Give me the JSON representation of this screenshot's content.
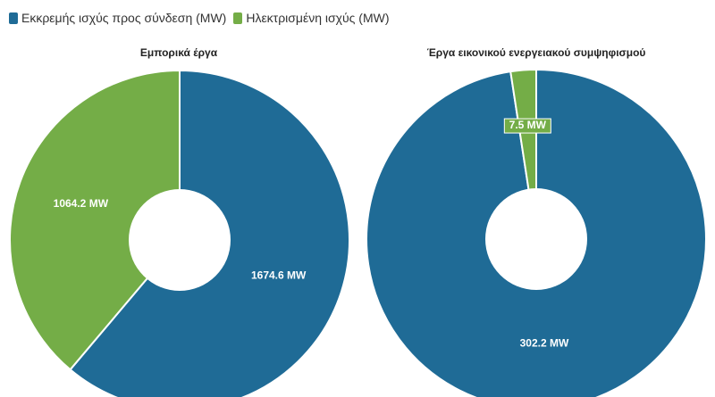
{
  "legend": {
    "items": [
      {
        "label": "Εκκρεμής ισχύς προς σύνδεση (MW)",
        "color": "#1f6b96"
      },
      {
        "label": "Ηλεκτρισμένη ισχύς (MW)",
        "color": "#74ad47"
      }
    ]
  },
  "chart_data": [
    {
      "type": "pie",
      "title": "Εμπορικά έργα",
      "donut": true,
      "slices": [
        {
          "name": "Εκκρεμής ισχύς προς σύνδεση (MW)",
          "value": 1674.6,
          "label": "1674.6 MW",
          "color": "#1f6b96"
        },
        {
          "name": "Ηλεκτρισμένη ισχύς (MW)",
          "value": 1064.2,
          "label": "1064.2 MW",
          "color": "#74ad47"
        }
      ]
    },
    {
      "type": "pie",
      "title": "Έργα εικονικού ενεργειακού συμψηφισμού",
      "donut": true,
      "slices": [
        {
          "name": "Εκκρεμής ισχύς προς σύνδεση (MW)",
          "value": 302.2,
          "label": "302.2 MW",
          "color": "#1f6b96"
        },
        {
          "name": "Ηλεκτρισμένη ισχύς (MW)",
          "value": 7.5,
          "label": "7.5 MW",
          "color": "#74ad47"
        }
      ]
    }
  ]
}
